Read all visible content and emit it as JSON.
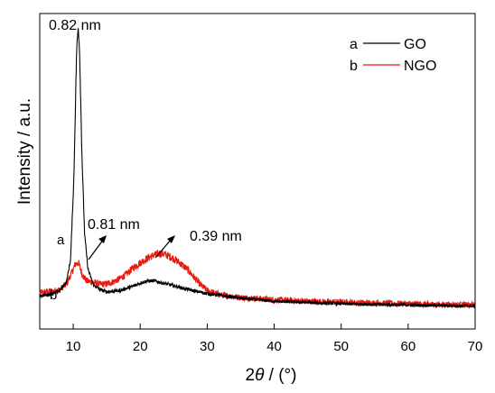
{
  "chart_data": {
    "type": "line",
    "xlabel_pre": "2",
    "xlabel_theta": "θ",
    "xlabel_post": " / (°)",
    "ylabel": "Intensity / a.u.",
    "xlim": [
      5,
      70
    ],
    "ylim": [
      0,
      100
    ],
    "x_ticks": [
      10,
      20,
      30,
      40,
      50,
      60,
      70
    ],
    "x_tick_labels": [
      "10",
      "20",
      "30",
      "40",
      "50",
      "60",
      "70"
    ],
    "y_ticks_labeled": false,
    "legend_position": "top-right",
    "series": [
      {
        "name": "GO",
        "marker": "a",
        "color": "#000000",
        "points": [
          [
            5,
            10.5
          ],
          [
            6,
            10.8
          ],
          [
            7,
            11.2
          ],
          [
            8,
            12.2
          ],
          [
            9,
            15
          ],
          [
            9.6,
            22
          ],
          [
            10.1,
            48
          ],
          [
            10.5,
            88
          ],
          [
            10.75,
            96
          ],
          [
            10.95,
            88
          ],
          [
            11.3,
            55
          ],
          [
            11.7,
            30
          ],
          [
            12.2,
            19
          ],
          [
            13,
            14
          ],
          [
            14,
            12.5
          ],
          [
            15,
            11.8
          ],
          [
            17,
            12.2
          ],
          [
            19,
            13.6
          ],
          [
            20,
            14.6
          ],
          [
            21,
            15.2
          ],
          [
            22,
            15.3
          ],
          [
            23,
            14.8
          ],
          [
            25,
            13.7
          ],
          [
            27,
            12.6
          ],
          [
            30,
            11.2
          ],
          [
            35,
            9.8
          ],
          [
            40,
            8.8
          ],
          [
            50,
            8
          ],
          [
            60,
            7.6
          ],
          [
            70,
            7.3
          ]
        ]
      },
      {
        "name": "NGO",
        "marker": "b",
        "color": "#e8190f",
        "points": [
          [
            5,
            11.5
          ],
          [
            6,
            11.8
          ],
          [
            7,
            12
          ],
          [
            8,
            12.5
          ],
          [
            9,
            14.2
          ],
          [
            9.7,
            17.5
          ],
          [
            10.3,
            20.5
          ],
          [
            10.8,
            21
          ],
          [
            11.3,
            17.5
          ],
          [
            12,
            15.2
          ],
          [
            13,
            14.8
          ],
          [
            14,
            14.2
          ],
          [
            15,
            14.3
          ],
          [
            16,
            15
          ],
          [
            17,
            16
          ],
          [
            18,
            17.5
          ],
          [
            19,
            19.5
          ],
          [
            20,
            21
          ],
          [
            21,
            22.3
          ],
          [
            22,
            23.4
          ],
          [
            23,
            24
          ],
          [
            24,
            23.4
          ],
          [
            25,
            22.3
          ],
          [
            26,
            20.8
          ],
          [
            27,
            19
          ],
          [
            28,
            16.5
          ],
          [
            29,
            14
          ],
          [
            30,
            12.2
          ],
          [
            32,
            10.8
          ],
          [
            35,
            10
          ],
          [
            40,
            9.3
          ],
          [
            45,
            8.8
          ],
          [
            50,
            8.5
          ],
          [
            60,
            8
          ],
          [
            70,
            7.6
          ]
        ]
      }
    ],
    "annotations": [
      {
        "text": "0.82 nm"
      },
      {
        "text": "0.81 nm"
      },
      {
        "text": "0.39 nm"
      }
    ]
  }
}
